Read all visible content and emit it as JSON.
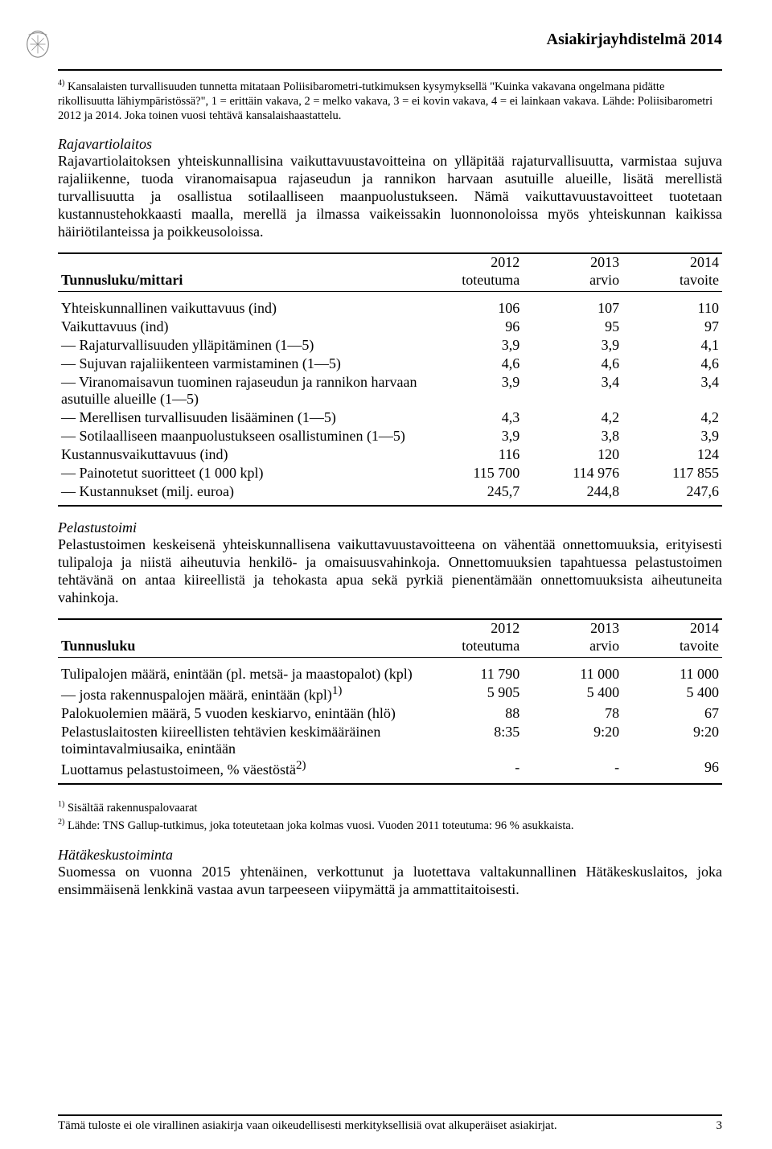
{
  "header": {
    "title": "Asiakirjayhdistelmä 2014"
  },
  "topFootnote": {
    "line1": "4) Kansalaisten turvallisuuden tunnetta mitataan Poliisibarometri-tutkimuksen kysymyksellä \"Kuinka vakavana ongelmana pidätte rikollisuutta lähiympäristössä?\", 1 = erittäin vakava, 2 = melko vakava, 3 = ei kovin vakava, 4 = ei lainkaan vakava. Lähde: Poliisibarometri 2012 ja 2014. Joka toinen vuosi tehtävä kansalaishaastattelu."
  },
  "raja": {
    "title": "Rajavartiolaitos",
    "body": "Rajavartiolaitoksen yhteiskunnallisina vaikuttavuustavoitteina on ylläpitää rajaturvallisuutta, varmistaa sujuva rajaliikenne, tuoda viranomaisapua rajaseudun ja rannikon harvaan asutuille alueille, lisätä merellistä turvallisuutta ja osallistua sotilaalliseen maanpuolustukseen. Nämä vaikuttavuustavoitteet tuotetaan kustannustehokkaasti maalla, merellä ja ilmassa vaikeissakin luonnonoloissa myös yhteiskunnan kaikissa häiriötilanteissa ja poikkeusoloissa."
  },
  "table1": {
    "headLeft": "Tunnusluku/mittari",
    "cols": [
      {
        "year": "2012",
        "sub": "toteutuma"
      },
      {
        "year": "2013",
        "sub": "arvio"
      },
      {
        "year": "2014",
        "sub": "tavoite"
      }
    ],
    "rows": [
      {
        "label": "Yhteiskunnallinen vaikuttavuus (ind)",
        "v": [
          "106",
          "107",
          "110"
        ]
      },
      {
        "label": "Vaikuttavuus (ind)",
        "v": [
          "96",
          "95",
          "97"
        ]
      },
      {
        "label": "— Rajaturvallisuuden ylläpitäminen (1—5)",
        "v": [
          "3,9",
          "3,9",
          "4,1"
        ]
      },
      {
        "label": "— Sujuvan rajaliikenteen varmistaminen (1—5)",
        "v": [
          "4,6",
          "4,6",
          "4,6"
        ]
      },
      {
        "label": "— Viranomaisavun tuominen rajaseudun ja rannikon harvaan asutuille alueille (1—5)",
        "v": [
          "3,9",
          "3,4",
          "3,4"
        ]
      },
      {
        "label": "— Merellisen turvallisuuden lisääminen (1—5)",
        "v": [
          "4,3",
          "4,2",
          "4,2"
        ]
      },
      {
        "label": "— Sotilaalliseen maanpuolustukseen osallistuminen (1—5)",
        "v": [
          "3,9",
          "3,8",
          "3,9"
        ]
      },
      {
        "label": "Kustannusvaikuttavuus (ind)",
        "v": [
          "116",
          "120",
          "124"
        ]
      },
      {
        "label": "— Painotetut suoritteet (1 000 kpl)",
        "v": [
          "115 700",
          "114 976",
          "117 855"
        ]
      },
      {
        "label": "— Kustannukset (milj. euroa)",
        "v": [
          "245,7",
          "244,8",
          "247,6"
        ]
      }
    ]
  },
  "pelastus": {
    "title": "Pelastustoimi",
    "body": "Pelastustoimen keskeisenä yhteiskunnallisena vaikuttavuustavoitteena on vähentää onnettomuuksia, erityisesti tulipaloja ja niistä aiheutuvia henkilö- ja omaisuusvahinkoja. Onnettomuuksien tapahtuessa pelastustoimen tehtävänä on antaa kiireellistä ja tehokasta apua sekä pyrkiä pienentämään onnettomuuksista aiheutuneita vahinkoja."
  },
  "table2": {
    "headLeft": "Tunnusluku",
    "cols": [
      {
        "year": "2012",
        "sub": "toteutuma"
      },
      {
        "year": "2013",
        "sub": "arvio"
      },
      {
        "year": "2014",
        "sub": "tavoite"
      }
    ],
    "rows": [
      {
        "label": "Tulipalojen määrä, enintään (pl. metsä- ja maastopalot) (kpl)",
        "v": [
          "11 790",
          "11 000",
          "11 000"
        ]
      },
      {
        "label": "— josta rakennuspalojen määrä, enintään (kpl)",
        "sup": "1)",
        "v": [
          "5 905",
          "5 400",
          "5 400"
        ]
      },
      {
        "label": "Palokuolemien määrä, 5 vuoden keskiarvo, enintään (hlö)",
        "v": [
          "88",
          "78",
          "67"
        ]
      },
      {
        "label": "Pelastuslaitosten kiireellisten tehtävien keskimääräinen toimintavalmiusaika, enintään",
        "v": [
          "8:35",
          "9:20",
          "9:20"
        ]
      },
      {
        "label": "Luottamus pelastustoimeen, % väestöstä",
        "sup": "2)",
        "v": [
          "-",
          "-",
          "96"
        ]
      }
    ]
  },
  "bottomFootnotes": {
    "f1": "1) Sisältää rakennuspalovaarat",
    "f2": "2) Lähde: TNS Gallup-tutkimus, joka toteutetaan joka kolmas vuosi. Vuoden 2011 toteutuma: 96 % asukkaista."
  },
  "hata": {
    "title": "Hätäkeskustoiminta",
    "body": "Suomessa on vuonna 2015 yhtenäinen, verkottunut ja luotettava valtakunnallinen Hätäkeskuslaitos, joka ensimmäisenä lenkkinä vastaa avun tarpeeseen viipymättä ja ammattitaitoisesti."
  },
  "footer": {
    "text": "Tämä tuloste ei ole virallinen asiakirja vaan oikeudellisesti merkityksellisiä ovat alkuperäiset asiakirjat.",
    "page": "3"
  }
}
